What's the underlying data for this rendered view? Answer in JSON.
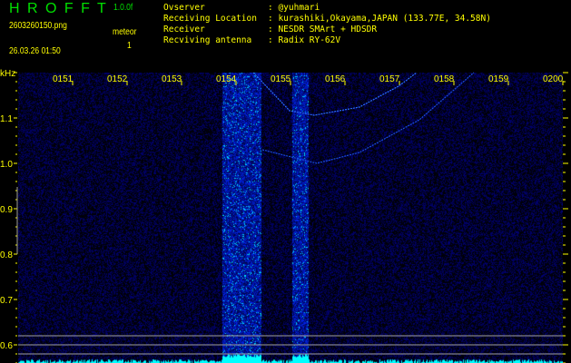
{
  "header": {
    "app_title": "H R O F F T",
    "version": "1.0.0f",
    "filename": "2603260150.png",
    "datetime": "26.03.26 01:50",
    "meteor_label": "meteor",
    "meteor_count": "1",
    "info": [
      {
        "label": "Ovserver",
        "value": ": @yuhmari"
      },
      {
        "label": "Receiving Location",
        "value": ": kurashiki,Okayama,JAPAN (133.77E, 34.58N)"
      },
      {
        "label": "Receiver",
        "value": ": NESDR SMArt + HDSDR"
      },
      {
        "label": "Recviving antenna",
        "value": ": Radix RY-62V"
      }
    ]
  },
  "colors": {
    "title": "#00e000",
    "text": "#ffff00",
    "background": "#000000",
    "signal": "#0033ff",
    "spectrum": "#00ffff",
    "reference_lines": "#a0a0a0"
  },
  "chart_data": {
    "type": "heatmap",
    "ylabel": "kHz",
    "x_tick_labels": [
      "0151",
      "0152",
      "0153",
      "0154",
      "0155",
      "0156",
      "0157",
      "0158",
      "0159",
      "0200"
    ],
    "x_range": [
      "01:50",
      "02:00"
    ],
    "y_tick_labels": [
      "1.1",
      "1.0",
      "0.9",
      "0.8",
      "0.7",
      "0.6"
    ],
    "ylim": [
      0.56,
      1.2
    ],
    "reference_lines_khz": [
      0.62,
      0.6,
      0.58
    ],
    "echo_bands": [
      {
        "start": "01:53:45",
        "end": "01:54:27"
      },
      {
        "start": "01:55:02",
        "end": "01:55:19"
      }
    ],
    "doppler_traces": [
      {
        "points": [
          [
            "01:54:19",
            1.2
          ],
          [
            "01:54:59",
            1.116
          ],
          [
            "01:55:26",
            1.106
          ],
          [
            "01:56:16",
            1.124
          ],
          [
            "01:56:59",
            1.17
          ],
          [
            "01:57:19",
            1.2
          ]
        ]
      },
      {
        "points": [
          [
            "01:54:29",
            1.03
          ],
          [
            "01:55:29",
            1.0
          ],
          [
            "01:56:16",
            1.024
          ],
          [
            "01:57:22",
            1.096
          ],
          [
            "01:58:22",
            1.2
          ]
        ]
      }
    ]
  }
}
